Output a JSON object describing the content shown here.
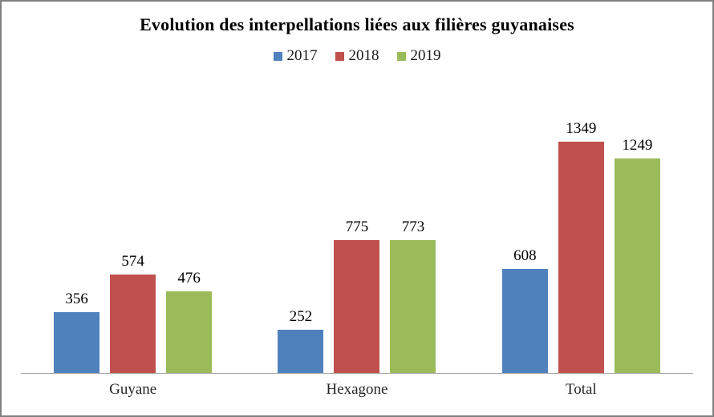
{
  "window": {
    "background_color": "#ffffff",
    "border_color": "#808080",
    "axis_line_color": "#a6a6a6"
  },
  "chart_data": {
    "type": "bar",
    "title": "Evolution des interpellations liées aux filières guyanaises",
    "categories": [
      "Guyane",
      "Hexagone",
      "Total"
    ],
    "series": [
      {
        "name": "2017",
        "color": "#4F81BD",
        "values": [
          356,
          252,
          608
        ]
      },
      {
        "name": "2018",
        "color": "#C0504D",
        "values": [
          574,
          775,
          1349
        ]
      },
      {
        "name": "2019",
        "color": "#9BBB59",
        "values": [
          476,
          773,
          1249
        ]
      }
    ],
    "ylim": [
      0,
      1400
    ],
    "grid": false,
    "legend_position": "top",
    "data_labels": true,
    "xlabel": "",
    "ylabel": ""
  }
}
